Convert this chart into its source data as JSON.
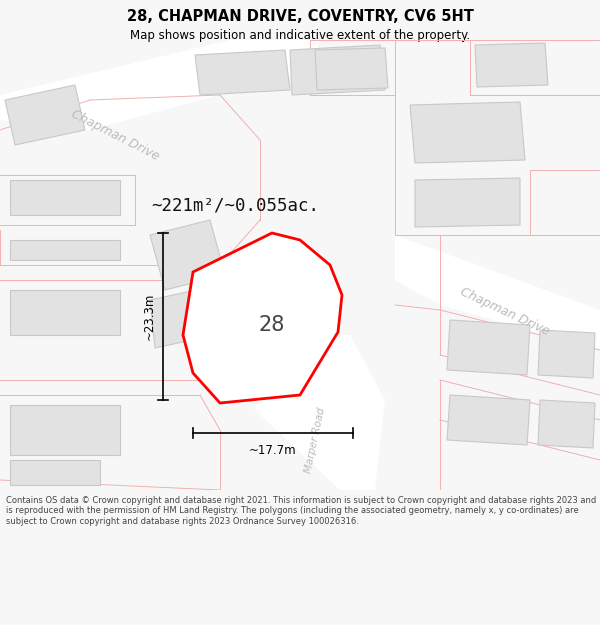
{
  "title": "28, CHAPMAN DRIVE, COVENTRY, CV6 5HT",
  "subtitle": "Map shows position and indicative extent of the property.",
  "area_label": "~221m²/~0.055ac.",
  "number_label": "28",
  "dim_width": "~17.7m",
  "dim_height": "~23.3m",
  "road_label_tl": "Chapman Drive",
  "road_label_tr": "Chapman Drive",
  "road_label_br": "Marper Road",
  "footer": "Contains OS data © Crown copyright and database right 2021. This information is subject to Crown copyright and database rights 2023 and is reproduced with the permission of HM Land Registry. The polygons (including the associated geometry, namely x, y co-ordinates) are subject to Crown copyright and database rights 2023 Ordnance Survey 100026316.",
  "bg_color": "#f7f7f7",
  "map_bg": "#ffffff",
  "building_fill": "#e2e2e2",
  "building_edge": "#c8c8c8",
  "plot_fill": "#ffffff",
  "plot_edge": "#ff0000",
  "pink_line": "#f0b0b0",
  "pink_fill_light": "#fdf5f5",
  "dim_color": "#000000",
  "road_text_color": "#bbbbbb",
  "title_color": "#000000",
  "footer_color": "#444444"
}
